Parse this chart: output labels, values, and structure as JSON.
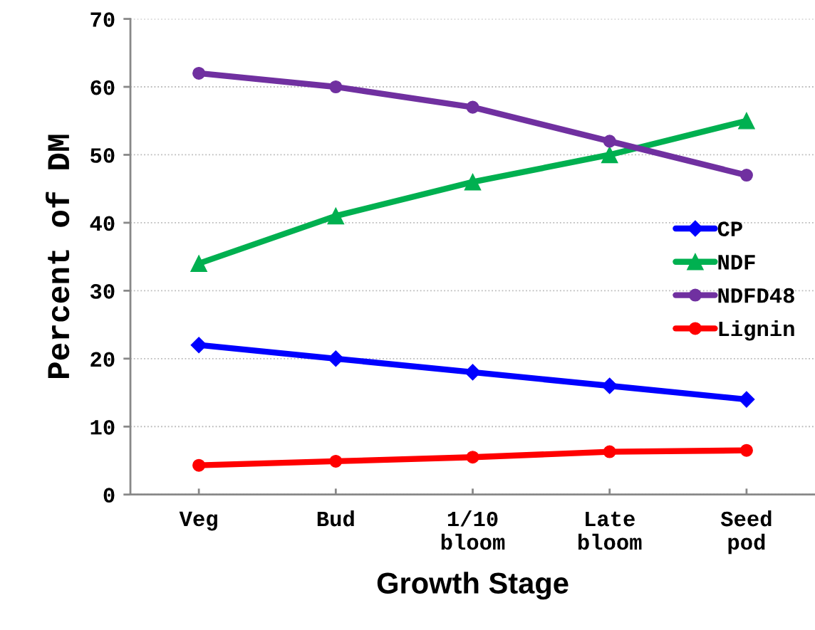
{
  "chart_data": {
    "type": "line",
    "xlabel": "Growth Stage",
    "ylabel": "Percent of DM",
    "categories": [
      "Veg",
      "Bud",
      "1/10\nbloom",
      "Late\nbloom",
      "Seed\npod"
    ],
    "series": [
      {
        "name": "CP",
        "color": "#0000ff",
        "marker": "diamond",
        "values": [
          22,
          20,
          18,
          16,
          14
        ]
      },
      {
        "name": "NDF",
        "color": "#00b050",
        "marker": "triangle",
        "values": [
          34,
          41,
          46,
          50,
          55
        ]
      },
      {
        "name": "NDFD48",
        "color": "#7030a0",
        "marker": "circle",
        "values": [
          62,
          60,
          57,
          52,
          47
        ]
      },
      {
        "name": "Lignin",
        "color": "#ff0000",
        "marker": "circle",
        "values": [
          4.3,
          4.9,
          5.5,
          6.3,
          6.5
        ]
      }
    ],
    "ylim": [
      0,
      70
    ],
    "yticks": [
      0,
      10,
      20,
      30,
      40,
      50,
      60,
      70
    ],
    "grid": "y",
    "legend": "center right",
    "line_style": "solid"
  }
}
